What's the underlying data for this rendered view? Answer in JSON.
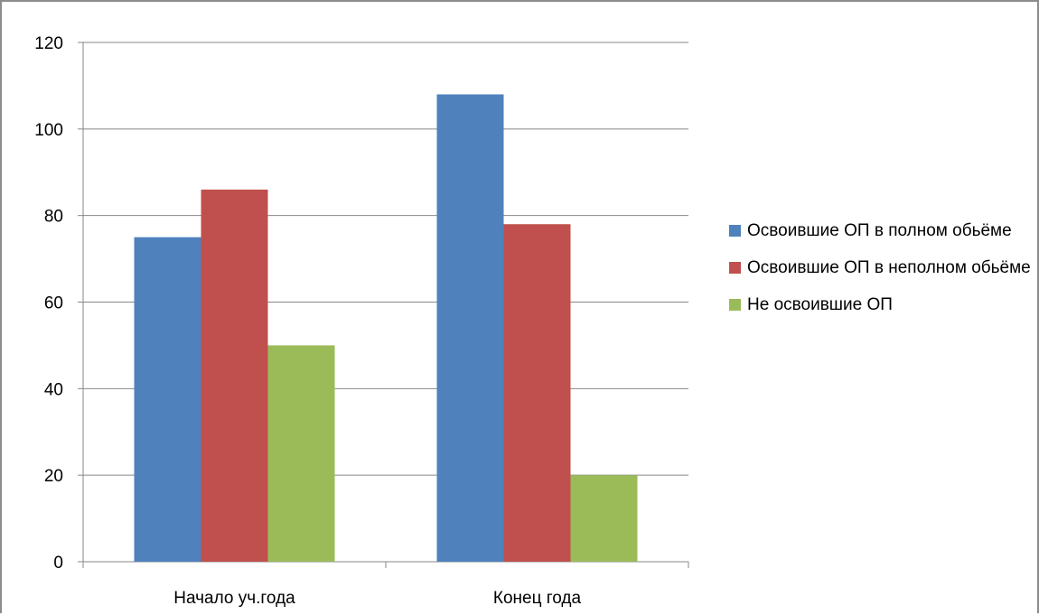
{
  "chart_data": {
    "type": "bar",
    "title": "",
    "xlabel": "",
    "ylabel": "",
    "ylim": [
      0,
      120
    ],
    "yticks": [
      "0",
      "20",
      "40",
      "60",
      "80",
      "100",
      "120"
    ],
    "categories": [
      "Начало уч.года",
      "Конец года"
    ],
    "series": [
      {
        "name": "Освоившие ОП в полном обьёме",
        "color": "#4f81bd",
        "values": [
          75,
          108
        ]
      },
      {
        "name": "Освоившие ОП в неполном обьёме",
        "color": "#c0504d",
        "values": [
          86,
          78
        ]
      },
      {
        "name": "Не освоившие ОП",
        "color": "#9bbb59",
        "values": [
          50,
          20
        ]
      }
    ],
    "grid": true,
    "legend_position": "right"
  }
}
